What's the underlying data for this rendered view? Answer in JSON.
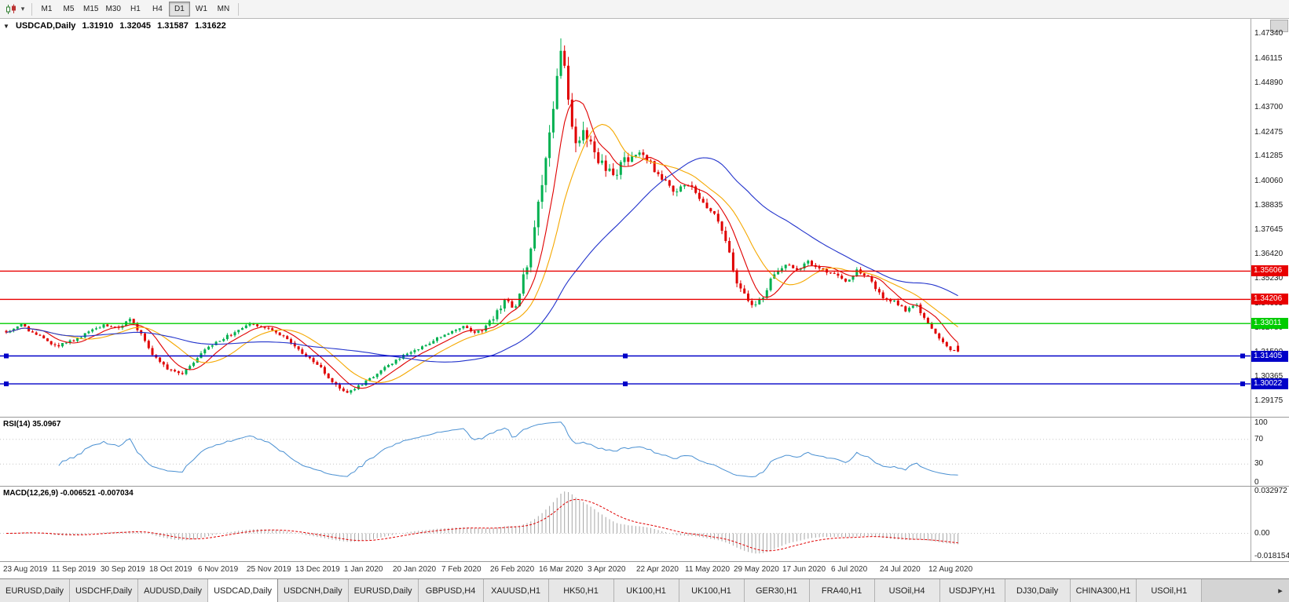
{
  "icons": {
    "collapse": "▼",
    "dropdown_caret": "▾",
    "tab_scroll_right": "▸"
  },
  "colors": {
    "candle_up": "#00b050",
    "candle_down": "#e00000",
    "macd_hist": "#a6a6a6",
    "macd_signal": "#e00000"
  },
  "toolbar": {
    "timeframes": [
      "M1",
      "M5",
      "M15",
      "M30",
      "H1",
      "H4",
      "D1",
      "W1",
      "MN"
    ],
    "active_timeframe": "D1"
  },
  "quote_header": {
    "symbol": "USDCAD,Daily",
    "open": "1.31910",
    "high": "1.32045",
    "low": "1.31587",
    "close": "1.31622"
  },
  "price_axis": {
    "labels": [
      "1.47340",
      "1.46115",
      "1.44890",
      "1.43700",
      "1.42475",
      "1.41285",
      "1.40060",
      "1.38835",
      "1.37645",
      "1.36420",
      "1.35230",
      "1.34005",
      "1.32780",
      "1.31590",
      "1.30365",
      "1.29175"
    ]
  },
  "hlines": [
    {
      "price": 1.35606,
      "label": "1.35606",
      "color": "#e80000",
      "handles": false
    },
    {
      "price": 1.34206,
      "label": "1.34206",
      "color": "#e80000",
      "handles": false
    },
    {
      "price": 1.33011,
      "label": "1.33011",
      "color": "#00cc00",
      "handles": false
    },
    {
      "price": 1.31405,
      "label": "1.31405",
      "color": "#0000c8",
      "handles": true
    },
    {
      "price": 1.30022,
      "label": "1.30022",
      "color": "#0000c8",
      "handles": true
    }
  ],
  "indicators": {
    "rsi": {
      "label": "RSI(14) 35.0967",
      "value": 35.0967,
      "period": 14,
      "upper": 70,
      "lower": 30,
      "levels": [
        "100",
        "70",
        "30",
        "0"
      ],
      "line_color": "#4a90d2"
    },
    "macd": {
      "label": "MACD(12,26,9) -0.006521 -0.007034",
      "macd_value": -0.006521,
      "signal_value": -0.007034,
      "axis": [
        "0.032972",
        "0.00",
        "-0.018154"
      ],
      "max": 0.032972,
      "min": -0.018154
    }
  },
  "chart_data": {
    "type": "candlestick",
    "symbol": "USDCAD",
    "timeframe": "Daily",
    "count": 255,
    "x_step": 4.77,
    "price_min": 1.289,
    "price_max": 1.477,
    "last_candle": {
      "open": 1.3191,
      "high": 1.32045,
      "low": 1.31587,
      "close": 1.31622
    },
    "spike": {
      "index": 148,
      "high": 1.4712
    },
    "moving_averages": [
      {
        "period": 8,
        "color": "#e00000"
      },
      {
        "period": 16,
        "color": "#f5a800"
      },
      {
        "period": 45,
        "color": "#2233cc"
      }
    ],
    "anchors": [
      [
        0,
        1.3265,
        0.0018
      ],
      [
        4,
        1.3292,
        0.0018
      ],
      [
        8,
        1.3245,
        0.0018
      ],
      [
        13,
        1.3188,
        0.0018
      ],
      [
        17,
        1.3212,
        0.0016
      ],
      [
        22,
        1.3256,
        0.0016
      ],
      [
        26,
        1.3298,
        0.0016
      ],
      [
        30,
        1.3278,
        0.0016
      ],
      [
        33,
        1.3318,
        0.0018
      ],
      [
        36,
        1.3255,
        0.002
      ],
      [
        39,
        1.3152,
        0.0022
      ],
      [
        43,
        1.3082,
        0.002
      ],
      [
        47,
        1.3048,
        0.0018
      ],
      [
        52,
        1.3158,
        0.0018
      ],
      [
        58,
        1.3228,
        0.0016
      ],
      [
        65,
        1.3298,
        0.0015
      ],
      [
        70,
        1.3279,
        0.0015
      ],
      [
        74,
        1.3238,
        0.0016
      ],
      [
        78,
        1.3172,
        0.0016
      ],
      [
        84,
        1.3078,
        0.0018
      ],
      [
        88,
        1.2992,
        0.0018
      ],
      [
        91,
        1.2958,
        0.0016
      ],
      [
        95,
        1.3002,
        0.0015
      ],
      [
        99,
        1.3052,
        0.0015
      ],
      [
        104,
        1.3122,
        0.0015
      ],
      [
        110,
        1.3178,
        0.0015
      ],
      [
        117,
        1.3248,
        0.0015
      ],
      [
        122,
        1.3288,
        0.0016
      ],
      [
        125,
        1.3252,
        0.0018
      ],
      [
        128,
        1.3282,
        0.0022
      ],
      [
        130,
        1.3332,
        0.0026
      ],
      [
        133,
        1.3405,
        0.0032
      ],
      [
        136,
        1.3378,
        0.004
      ],
      [
        139,
        1.3602,
        0.0055
      ],
      [
        141,
        1.3755,
        0.0065
      ],
      [
        143,
        1.3985,
        0.0085
      ],
      [
        145,
        1.4255,
        0.0095
      ],
      [
        147,
        1.453,
        0.0105
      ],
      [
        148,
        1.464,
        0.011
      ],
      [
        149,
        1.4545,
        0.01
      ],
      [
        150,
        1.4385,
        0.0092
      ],
      [
        152,
        1.4165,
        0.0082
      ],
      [
        154,
        1.4262,
        0.0072
      ],
      [
        156,
        1.4185,
        0.0062
      ],
      [
        159,
        1.4085,
        0.0056
      ],
      [
        162,
        1.4032,
        0.005
      ],
      [
        165,
        1.4112,
        0.0048
      ],
      [
        169,
        1.4152,
        0.0045
      ],
      [
        172,
        1.4092,
        0.0042
      ],
      [
        175,
        1.4012,
        0.004
      ],
      [
        178,
        1.3958,
        0.0038
      ],
      [
        182,
        1.3988,
        0.0036
      ],
      [
        186,
        1.3908,
        0.0034
      ],
      [
        189,
        1.3832,
        0.0032
      ],
      [
        192,
        1.3712,
        0.0032
      ],
      [
        195,
        1.3508,
        0.0032
      ],
      [
        197,
        1.3458,
        0.003
      ],
      [
        199,
        1.3392,
        0.0028
      ],
      [
        202,
        1.3432,
        0.0026
      ],
      [
        205,
        1.3552,
        0.0026
      ],
      [
        208,
        1.3588,
        0.0024
      ],
      [
        211,
        1.3568,
        0.0022
      ],
      [
        214,
        1.3608,
        0.0022
      ],
      [
        217,
        1.3568,
        0.002
      ],
      [
        221,
        1.3548,
        0.002
      ],
      [
        224,
        1.3508,
        0.002
      ],
      [
        227,
        1.3562,
        0.002
      ],
      [
        230,
        1.3528,
        0.0019
      ],
      [
        234,
        1.3428,
        0.0019
      ],
      [
        237,
        1.3408,
        0.0018
      ],
      [
        240,
        1.3368,
        0.0018
      ],
      [
        243,
        1.3388,
        0.0018
      ],
      [
        247,
        1.3268,
        0.0019
      ],
      [
        250,
        1.3208,
        0.0017
      ],
      [
        252,
        1.3172,
        0.0015
      ],
      [
        254,
        1.31622,
        0.0014
      ]
    ],
    "date_labels": [
      {
        "i": 0,
        "t": "23 Aug 2019"
      },
      {
        "i": 13,
        "t": "11 Sep 2019"
      },
      {
        "i": 26,
        "t": "30 Sep 2019"
      },
      {
        "i": 39,
        "t": "18 Oct 2019"
      },
      {
        "i": 52,
        "t": "6 Nov 2019"
      },
      {
        "i": 65,
        "t": "25 Nov 2019"
      },
      {
        "i": 78,
        "t": "13 Dec 2019"
      },
      {
        "i": 91,
        "t": "1 Jan 2020"
      },
      {
        "i": 104,
        "t": "20 Jan 2020"
      },
      {
        "i": 117,
        "t": "7 Feb 2020"
      },
      {
        "i": 130,
        "t": "26 Feb 2020"
      },
      {
        "i": 143,
        "t": "16 Mar 2020"
      },
      {
        "i": 156,
        "t": "3 Apr 2020"
      },
      {
        "i": 169,
        "t": "22 Apr 2020"
      },
      {
        "i": 182,
        "t": "11 May 2020"
      },
      {
        "i": 195,
        "t": "29 May 2020"
      },
      {
        "i": 208,
        "t": "17 Jun 2020"
      },
      {
        "i": 221,
        "t": "6 Jul 2020"
      },
      {
        "i": 234,
        "t": "24 Jul 2020"
      },
      {
        "i": 247,
        "t": "12 Aug 2020"
      }
    ]
  },
  "bottom_tabs": {
    "active_index": 3,
    "tabs": [
      "EURUSD,Daily",
      "USDCHF,Daily",
      "AUDUSD,Daily",
      "USDCAD,Daily",
      "USDCNH,Daily",
      "EURUSD,Daily",
      "GBPUSD,H4",
      "XAUUSD,H1",
      "HK50,H1",
      "UK100,H1",
      "UK100,H1",
      "GER30,H1",
      "FRA40,H1",
      "USOil,H4",
      "USDJPY,H1",
      "DJ30,Daily",
      "CHINA300,H1",
      "USOil,H1"
    ]
  }
}
